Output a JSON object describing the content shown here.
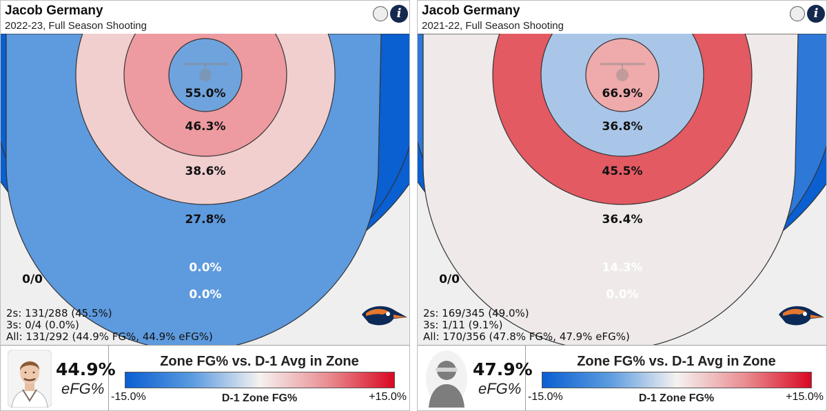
{
  "chart_data": [
    {
      "type": "heatmap",
      "title": "Jacob Germany",
      "subtitle": "2022-23, Full Season Shooting",
      "zones": [
        {
          "name": "rim",
          "label": "55.0%",
          "value": 55.0,
          "color": "#6fa3dd"
        },
        {
          "name": "short",
          "label": "46.3%",
          "value": 46.3,
          "color": "#ed9aa0"
        },
        {
          "name": "mid",
          "label": "38.6%",
          "value": 38.6,
          "color": "#f1cfcf"
        },
        {
          "name": "long2",
          "label": "27.8%",
          "value": 27.8,
          "color": "#5e9ade"
        },
        {
          "name": "three_inner",
          "label": "0.0%",
          "value": 0.0,
          "color": "#0a5fd1"
        },
        {
          "name": "three_outer",
          "label": "0.0%",
          "value": 0.0,
          "color": "#0a5fd1"
        },
        {
          "name": "corner",
          "label": "0/0",
          "color": "#efefef"
        }
      ],
      "stats": [
        "2s: 131/288 (45.5%)",
        "3s: 0/4 (0.0%)",
        "All: 131/292 (44.9% FG%, 44.9% eFG%)"
      ],
      "efg": "44.9%",
      "efg_label": "eFG%",
      "avatar": "player-photo"
    },
    {
      "type": "heatmap",
      "title": "Jacob Germany",
      "subtitle": "2021-22, Full Season Shooting",
      "zones": [
        {
          "name": "rim",
          "label": "66.9%",
          "value": 66.9,
          "color": "#efaaac"
        },
        {
          "name": "short",
          "label": "36.8%",
          "value": 36.8,
          "color": "#a9c6e8"
        },
        {
          "name": "mid",
          "label": "45.5%",
          "value": 45.5,
          "color": "#e35a62"
        },
        {
          "name": "long2",
          "label": "36.4%",
          "value": 36.4,
          "color": "#efe9e9"
        },
        {
          "name": "three_inner",
          "label": "14.3%",
          "value": 14.3,
          "color": "#2e78d8"
        },
        {
          "name": "three_outer",
          "label": "0.0%",
          "value": 0.0,
          "color": "#0a5fd1"
        },
        {
          "name": "corner",
          "label": "0/0",
          "color": "#efefef"
        }
      ],
      "stats": [
        "2s: 169/345 (49.0%)",
        "3s: 1/11 (9.1%)",
        "All: 170/356 (47.8% FG%, 47.9% eFG%)"
      ],
      "efg": "47.9%",
      "efg_label": "eFG%",
      "avatar": "silhouette-icon"
    }
  ],
  "legend": {
    "title": "Zone FG% vs. D-1 Avg in Zone",
    "min": "-15.0%",
    "mid": "D-1 Zone FG%",
    "max": "+15.0%",
    "colors": [
      "#0a5fd1",
      "#f5f2f0",
      "#d90822"
    ]
  },
  "icons": {
    "toggle": "circle-toggle-icon",
    "info": "info-icon",
    "logo": "roadrunner-logo-icon"
  },
  "info_glyph": "i"
}
